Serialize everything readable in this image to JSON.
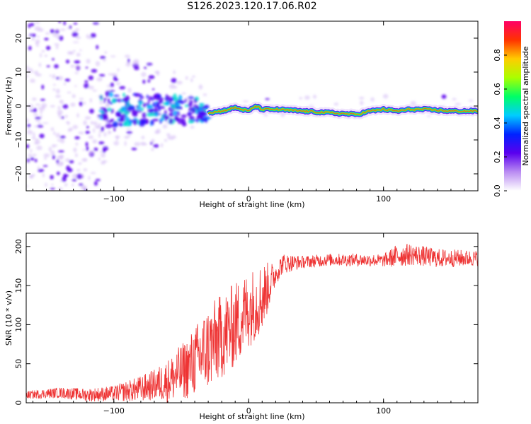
{
  "title": "S126.2023.120.17.06.R02",
  "colors": {
    "snr_line": "#ee3333",
    "spectro_scatter": "#5a00ee",
    "spectro_light": "#cdb0f5"
  },
  "chart_data": [
    {
      "type": "heatmap",
      "name": "spectrogram",
      "xlabel": "Height of straight line (km)",
      "ylabel": "Frequency (Hz)",
      "xlim": [
        -165,
        170
      ],
      "ylim": [
        -25,
        25
      ],
      "xticks": [
        -100,
        0,
        100
      ],
      "yticks": [
        -20,
        -10,
        0,
        10,
        20
      ],
      "colorbar": {
        "label": "Normalized spectral amplitude",
        "range": [
          0.0,
          1.0
        ],
        "ticks": [
          0.0,
          0.2,
          0.4,
          0.6,
          0.8
        ],
        "colormap": [
          "#ffffff",
          "#ba8cf2",
          "#5a00ee",
          "#0022ff",
          "#00ccff",
          "#00ff66",
          "#aaff00",
          "#ffcc00",
          "#ff3300",
          "#ff0066"
        ]
      },
      "ridge": {
        "description_values": "dominant frequency line (Hz) vs height (km)",
        "x": [
          -30,
          -20,
          -10,
          0,
          5,
          10,
          20,
          40,
          60,
          80,
          90,
          100,
          110,
          120,
          130,
          150,
          170
        ],
        "y": [
          -2,
          -1.5,
          -0.5,
          -1.5,
          0,
          -1,
          -1,
          -1.5,
          -2,
          -2.5,
          -1.5,
          -1,
          -1.5,
          -1,
          -1,
          -1.5,
          -1.5
        ]
      },
      "grid": false
    },
    {
      "type": "line",
      "name": "snr",
      "xlabel": "Height of straight line (km)",
      "ylabel": "SNR (10 * v/v)",
      "xlim": [
        -165,
        170
      ],
      "ylim": [
        0,
        217
      ],
      "xticks": [
        -100,
        0,
        100
      ],
      "yticks": [
        0,
        50,
        100,
        150,
        200
      ],
      "trend": {
        "x": [
          -165,
          -140,
          -120,
          -100,
          -80,
          -60,
          -45,
          -30,
          -20,
          -10,
          0,
          10,
          20,
          25,
          40,
          60,
          80,
          100,
          110,
          120,
          140,
          160,
          170
        ],
        "y": [
          10,
          13,
          10,
          12,
          18,
          28,
          45,
          70,
          85,
          100,
          120,
          135,
          165,
          178,
          180,
          183,
          183,
          182,
          188,
          190,
          185,
          185,
          185
        ]
      },
      "noise_amplitude": {
        "x": [
          -165,
          -100,
          -70,
          -45,
          -30,
          -10,
          10,
          20,
          40,
          100,
          110,
          140,
          170
        ],
        "y": [
          5,
          10,
          20,
          40,
          55,
          55,
          45,
          15,
          8,
          8,
          15,
          12,
          10
        ]
      },
      "grid": false
    }
  ]
}
